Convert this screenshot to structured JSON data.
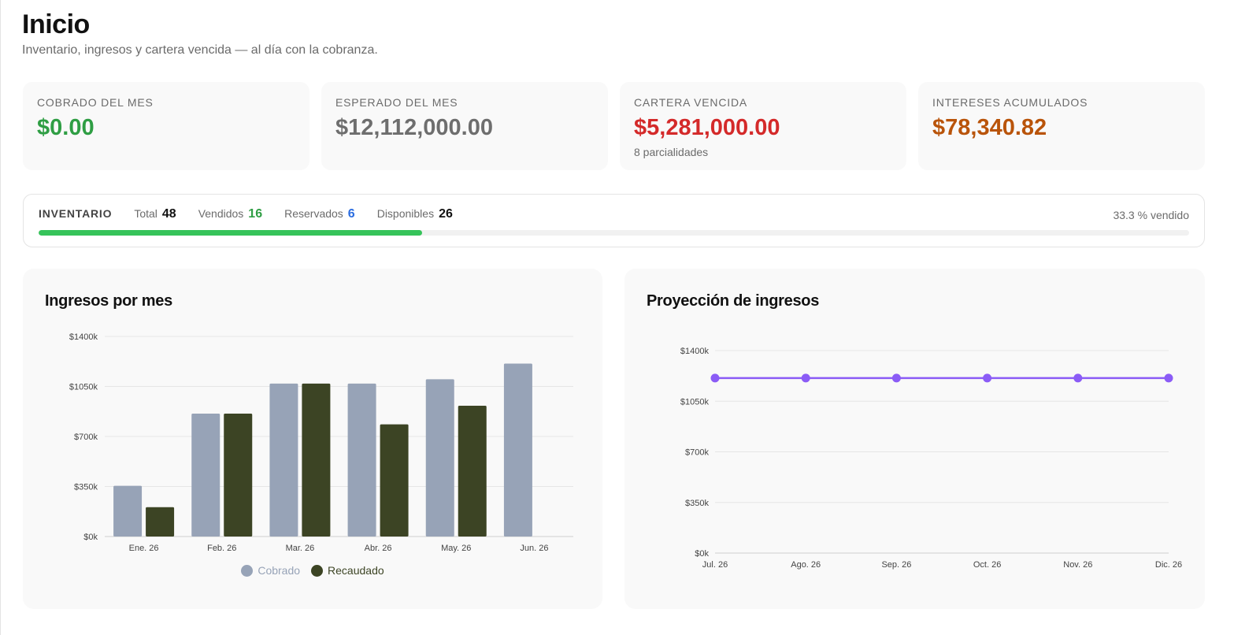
{
  "page": {
    "title": "Inicio",
    "subtitle": "Inventario, ingresos y cartera vencida — al día con la cobranza."
  },
  "stats": [
    {
      "label": "COBRADO DEL MES",
      "value": "$0.00",
      "color": "#2f9e44",
      "sub": ""
    },
    {
      "label": "ESPERADO DEL MES",
      "value": "$12,112,000.00",
      "color": "#6e6e6e",
      "sub": ""
    },
    {
      "label": "CARTERA VENCIDA",
      "value": "$5,281,000.00",
      "color": "#d42a2a",
      "sub": "8 parcialidades"
    },
    {
      "label": "INTERESES ACUMULADOS",
      "value": "$78,340.82",
      "color": "#b9540a",
      "sub": ""
    }
  ],
  "inventory": {
    "title": "INVENTARIO",
    "total_label": "Total",
    "total": "48",
    "sold_label": "Vendidos",
    "sold": "16",
    "reserved_label": "Reservados",
    "reserved": "6",
    "available_label": "Disponibles",
    "available": "26",
    "percent_text": "33.3 % vendido",
    "progress": 0.333,
    "colors": {
      "sold": "#2f9e44",
      "reserved": "#2b6de0",
      "bar": "#36c35a"
    }
  },
  "income_chart": {
    "title": "Ingresos por mes",
    "chart_data": {
      "type": "bar",
      "categories": [
        "Ene. 26",
        "Feb. 26",
        "Mar. 26",
        "Abr. 26",
        "May. 26",
        "Jun. 26"
      ],
      "series": [
        {
          "name": "Cobrado",
          "color": "#97a3b7",
          "values": [
            355000,
            860000,
            1070000,
            1070000,
            1100000,
            1210000
          ]
        },
        {
          "name": "Recaudado",
          "color": "#3c4424",
          "values": [
            205000,
            860000,
            1070000,
            785000,
            915000,
            0
          ]
        }
      ],
      "yticks": [
        "$0k",
        "$350k",
        "$700k",
        "$1050k",
        "$1400k"
      ],
      "ylim": [
        0,
        1400000
      ],
      "grid": true,
      "legend": "bottom"
    }
  },
  "projection_chart": {
    "title": "Proyección de ingresos",
    "chart_data": {
      "type": "line",
      "categories": [
        "Jul. 26",
        "Ago. 26",
        "Sep. 26",
        "Oct. 26",
        "Nov. 26",
        "Dic. 26"
      ],
      "series": [
        {
          "color": "#8b5cf6",
          "values": [
            1210000,
            1210000,
            1210000,
            1210000,
            1210000,
            1210000
          ]
        }
      ],
      "yticks": [
        "$0k",
        "$350k",
        "$700k",
        "$1050k",
        "$1400k"
      ],
      "ylim": [
        0,
        1400000
      ],
      "grid": true
    }
  }
}
